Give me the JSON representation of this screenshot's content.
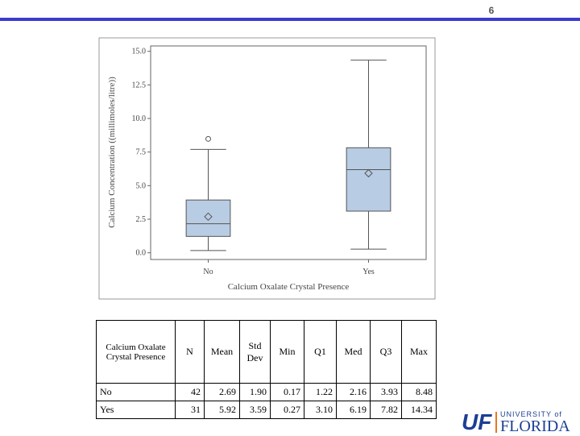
{
  "slide_number": "6",
  "chart_data": {
    "type": "box",
    "x_label": "Calcium Oxalate Crystal Presence",
    "y_label": "Calcium Concentration ((millimoles/litre))",
    "categories": [
      "No",
      "Yes"
    ],
    "color": "#b8cce4",
    "whisker_low": [
      0.17,
      0.27
    ],
    "q1": [
      1.22,
      3.1
    ],
    "median": [
      2.16,
      6.19
    ],
    "q3": [
      3.93,
      7.82
    ],
    "whisker_high": [
      7.7,
      14.34
    ],
    "mean": [
      2.69,
      5.92
    ],
    "outliers": [
      [
        8.48
      ],
      []
    ],
    "ylim": [
      -0.5,
      15.4
    ],
    "yticks": [
      {
        "value": 0,
        "label": "0.0"
      },
      {
        "value": 2.5,
        "label": "2.5"
      },
      {
        "value": 5,
        "label": "5.0"
      },
      {
        "value": 7.5,
        "label": "7.5"
      },
      {
        "value": 10,
        "label": "10.0"
      },
      {
        "value": 12.5,
        "label": "12.5"
      },
      {
        "value": 15,
        "label": "15.0"
      }
    ]
  },
  "table": {
    "header": [
      "Calcium Oxalate Crystal Presence",
      "N",
      "Mean",
      "Std Dev",
      "Min",
      "Q1",
      "Med",
      "Q3",
      "Max"
    ],
    "rows": [
      [
        "No",
        "42",
        "2.69",
        "1.90",
        "0.17",
        "1.22",
        "2.16",
        "3.93",
        "8.48"
      ],
      [
        "Yes",
        "31",
        "5.92",
        "3.59",
        "0.27",
        "3.10",
        "6.19",
        "7.82",
        "14.34"
      ]
    ]
  },
  "logo": {
    "mark": "UF",
    "line1": "UNIVERSITY of",
    "line2": "FLORIDA"
  }
}
